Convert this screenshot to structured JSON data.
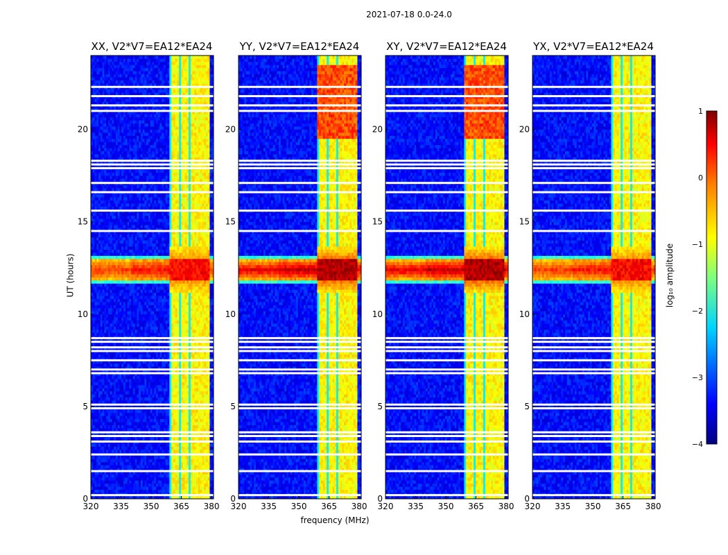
{
  "figure": {
    "title": "2021-07-18 0.0-24.0"
  },
  "chart_data": [
    {
      "type": "heatmap",
      "title": "XX, V2*V7=EA12*EA24",
      "xlabel": "frequency (MHz)",
      "ylabel": "UT (hours)",
      "xlim": [
        320,
        381
      ],
      "ylim": [
        0,
        24
      ],
      "xticks": [
        320,
        335,
        350,
        365,
        380
      ],
      "yticks": [
        0,
        5,
        10,
        15,
        20
      ],
      "rfi_band_mhz": [
        359,
        379
      ],
      "strong_event_hours": [
        11.8,
        13.0
      ],
      "peak_log_amplitude": 0.6
    },
    {
      "type": "heatmap",
      "title": "YY, V2*V7=EA12*EA24",
      "xlabel": "frequency (MHz)",
      "ylabel": "",
      "xlim": [
        320,
        381
      ],
      "ylim": [
        0,
        24
      ],
      "xticks": [
        320,
        335,
        350,
        365,
        380
      ],
      "yticks": [
        0,
        5,
        10,
        15,
        20
      ],
      "rfi_band_mhz": [
        359,
        379
      ],
      "strong_event_hours": [
        11.8,
        13.0
      ],
      "peak_log_amplitude": 1.0
    },
    {
      "type": "heatmap",
      "title": "XY, V2*V7=EA12*EA24",
      "xlabel": "frequency (MHz)",
      "ylabel": "",
      "xlim": [
        320,
        381
      ],
      "ylim": [
        0,
        24
      ],
      "xticks": [
        320,
        335,
        350,
        365,
        380
      ],
      "yticks": [
        0,
        5,
        10,
        15,
        20
      ],
      "rfi_band_mhz": [
        359,
        379
      ],
      "strong_event_hours": [
        11.8,
        13.0
      ],
      "peak_log_amplitude": 1.0
    },
    {
      "type": "heatmap",
      "title": "YX, V2*V7=EA12*EA24",
      "xlabel": "frequency (MHz)",
      "ylabel": "",
      "xlim": [
        320,
        381
      ],
      "ylim": [
        0,
        24
      ],
      "xticks": [
        320,
        335,
        350,
        365,
        380
      ],
      "yticks": [
        0,
        5,
        10,
        15,
        20
      ],
      "rfi_band_mhz": [
        359,
        379
      ],
      "strong_event_hours": [
        11.8,
        13.0
      ],
      "peak_log_amplitude": 0.6
    }
  ],
  "colorbar": {
    "label": "log₁₀ amplitude",
    "range": [
      -4,
      1
    ],
    "ticks": [
      -4,
      -3,
      -2,
      -1,
      0,
      1
    ],
    "tick_labels": [
      "−4",
      "−3",
      "−2",
      "−1",
      "0",
      "1"
    ],
    "colormap": [
      "#00007f",
      "#0000ff",
      "#007fff",
      "#00ffff",
      "#7fff7f",
      "#ffff00",
      "#ff7f00",
      "#ff0000",
      "#7f0000"
    ]
  },
  "flagged_hours": [
    0.2,
    1.5,
    2.4,
    3.1,
    3.4,
    3.6,
    4.9,
    5.1,
    6.8,
    7.0,
    7.5,
    8.0,
    8.2,
    8.5,
    8.7,
    14.5,
    15.6,
    16.6,
    17.1,
    17.9,
    18.1,
    18.3,
    21.0,
    21.3,
    21.8,
    22.3
  ]
}
